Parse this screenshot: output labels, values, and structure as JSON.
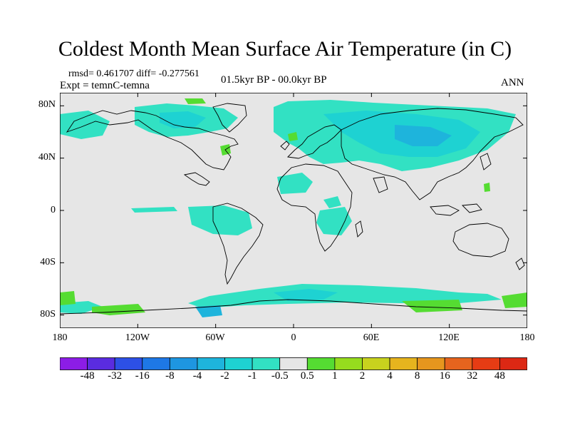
{
  "title": "Coldest Month Mean Surface Air Temperature (in C)",
  "stats": "rmsd= 0.461707 diff= -0.277561",
  "experiment": "Expt = temnC-temna",
  "period": "01.5kyr BP - 00.0kyr BP",
  "season": "ANN",
  "map": {
    "projection": "cylindrical-equidistant",
    "lon_range": [
      -180,
      180
    ],
    "lat_range": [
      -90,
      90
    ],
    "lat_ticks": [
      "80N",
      "40N",
      "0",
      "40S",
      "80S"
    ],
    "lat_tick_values": [
      80,
      40,
      0,
      -40,
      -80
    ],
    "lon_ticks": [
      "180",
      "120W",
      "60W",
      "0",
      "60E",
      "120E",
      "180"
    ],
    "lon_tick_values": [
      -180,
      -120,
      -60,
      0,
      60,
      120,
      180
    ],
    "background_color": "#e6e6e6",
    "coastline_color": "#000000"
  },
  "colorbar": {
    "labels": [
      "-48",
      "-32",
      "-16",
      "-8",
      "-4",
      "-2",
      "-1",
      "-0.5",
      "0.5",
      "1",
      "2",
      "4",
      "8",
      "16",
      "32",
      "48"
    ],
    "colors": [
      "#8c1de6",
      "#5a2ce0",
      "#2d50e6",
      "#1e78e6",
      "#1e96e1",
      "#1eb4dc",
      "#1ed2d2",
      "#32e1c3",
      "#e6e6e6",
      "#55dc32",
      "#96dc1e",
      "#c8d21e",
      "#e6b41e",
      "#e6961e",
      "#e6641e",
      "#e63c14",
      "#dc2814"
    ]
  }
}
